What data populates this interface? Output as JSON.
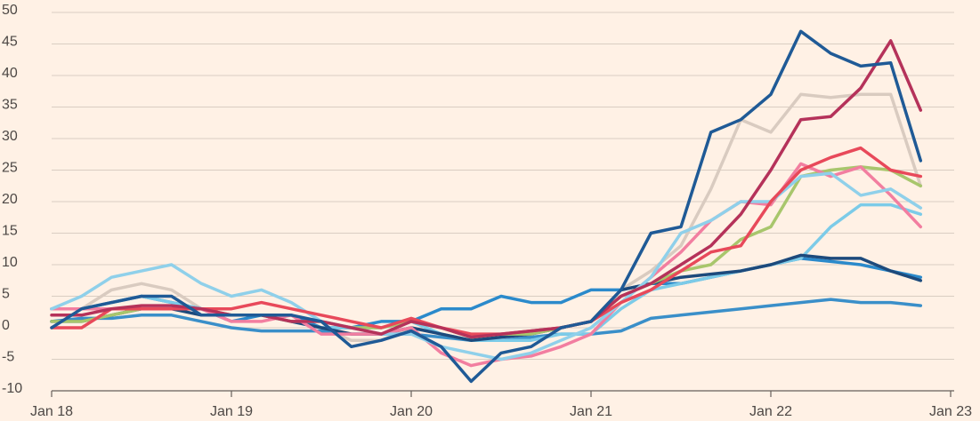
{
  "chart_data": {
    "type": "line",
    "x": [
      2018,
      2018.167,
      2018.333,
      2018.5,
      2018.667,
      2018.833,
      2019,
      2019.167,
      2019.333,
      2019.5,
      2019.667,
      2019.833,
      2020,
      2020.167,
      2020.333,
      2020.5,
      2020.667,
      2020.833,
      2021,
      2021.167,
      2021.333,
      2021.5,
      2021.667,
      2021.833,
      2022,
      2022.167,
      2022.333,
      2022.5,
      2022.667,
      2022.833
    ],
    "series": [
      {
        "color": "#d9cbc0",
        "values": [
          3,
          3,
          6,
          7,
          6,
          3,
          2,
          2,
          2,
          0,
          -2,
          -2,
          0,
          -1,
          -2,
          -1.5,
          -1,
          0,
          1,
          6,
          9,
          13,
          22,
          33,
          31,
          37,
          36.5,
          37,
          37,
          22.5
        ]
      },
      {
        "color": "#2b8acb",
        "values": [
          3,
          3,
          4,
          5,
          4,
          3,
          1,
          2,
          2,
          0,
          0,
          1,
          1,
          3,
          3,
          5,
          4,
          4,
          6,
          6,
          7,
          7,
          8,
          9,
          10,
          11,
          10.5,
          10,
          9,
          8
        ]
      },
      {
        "color": "#3a8fc9",
        "values": [
          1,
          1.5,
          1.5,
          2,
          2,
          1,
          0,
          -0.5,
          -0.5,
          -0.5,
          -1,
          -1,
          -1,
          -1.5,
          -2,
          -2,
          -1.5,
          -1,
          -1,
          -0.5,
          1.5,
          2,
          2.5,
          3,
          3.5,
          4,
          4.5,
          4,
          4,
          3.5
        ]
      },
      {
        "color": "#7ccbe8",
        "values": [
          3,
          3,
          4,
          5,
          4,
          3,
          2,
          2,
          1,
          0,
          0,
          0,
          1,
          -1,
          -2,
          -2,
          -2,
          -1,
          -1,
          3,
          6,
          7,
          8,
          9,
          10,
          11,
          16,
          19.5,
          19.5,
          18
        ]
      },
      {
        "color": "#1d4a7c",
        "values": [
          1,
          1,
          2,
          3,
          3,
          2,
          2,
          2,
          1,
          0,
          -1,
          -1,
          0,
          -1,
          -2,
          -1.5,
          -1,
          0,
          1,
          6,
          7,
          8,
          8.5,
          9,
          10,
          11.5,
          11,
          11,
          9,
          7.5
        ]
      },
      {
        "color": "#a8c66c",
        "values": [
          1,
          1,
          2,
          3,
          3,
          3,
          2,
          2,
          1,
          1,
          0,
          0,
          1,
          0,
          -1.5,
          -1,
          -1,
          0,
          1,
          5,
          7,
          9,
          10,
          14,
          16,
          24,
          25,
          25.5,
          25,
          22.5
        ]
      },
      {
        "color": "#f27ea0",
        "values": [
          3,
          3,
          3,
          3,
          3,
          3,
          1,
          1,
          2,
          -1,
          -1,
          -1,
          0,
          -4,
          -6,
          -5,
          -4.5,
          -3,
          -1,
          4,
          8,
          12,
          17,
          20,
          19.5,
          26,
          24,
          25.5,
          21,
          16
        ]
      },
      {
        "color": "#8fd0ea",
        "values": [
          3,
          5,
          8,
          9,
          10,
          7,
          5,
          6,
          4,
          1,
          0,
          -1,
          -1,
          -3,
          -4,
          -5,
          -4,
          -2,
          0,
          4,
          8,
          15,
          17,
          20,
          20,
          24,
          24.5,
          21,
          22,
          19
        ]
      },
      {
        "color": "#e8495a",
        "values": [
          0,
          0,
          3,
          3,
          3,
          3,
          3,
          4,
          3,
          2,
          1,
          0,
          1.5,
          0,
          -1,
          -1,
          -0.5,
          0,
          1,
          4,
          6,
          9,
          12,
          13,
          20,
          25,
          27,
          28.5,
          25,
          24
        ]
      },
      {
        "color": "#b5325a",
        "values": [
          2,
          2,
          3,
          3.5,
          3.5,
          3,
          2,
          2,
          1,
          1,
          0,
          -1,
          1,
          0,
          -1.5,
          -1,
          -0.5,
          0,
          1,
          5,
          7,
          10,
          13,
          18,
          25,
          33,
          33.5,
          38,
          45.5,
          34.5
        ]
      },
      {
        "color": "#1f5a96",
        "values": [
          0,
          3,
          4,
          5,
          5,
          2,
          2,
          2,
          2,
          1,
          -3,
          -2,
          -0.5,
          -3,
          -8.5,
          -4,
          -3,
          0,
          1,
          6,
          15,
          16,
          31,
          33,
          37,
          47,
          43.5,
          41.5,
          42,
          26.5
        ]
      }
    ],
    "xlim": [
      2018,
      2023
    ],
    "xticks": [
      {
        "value": 2018,
        "label": "Jan 18"
      },
      {
        "value": 2019,
        "label": "Jan 19"
      },
      {
        "value": 2020,
        "label": "Jan 20"
      },
      {
        "value": 2021,
        "label": "Jan 21"
      },
      {
        "value": 2022,
        "label": "Jan 22"
      },
      {
        "value": 2023,
        "label": "Jan 23"
      }
    ],
    "ylim": [
      -10,
      50
    ],
    "yticks": [
      -10,
      -5,
      0,
      5,
      10,
      15,
      20,
      25,
      30,
      35,
      40,
      45,
      50
    ],
    "grid": true
  }
}
